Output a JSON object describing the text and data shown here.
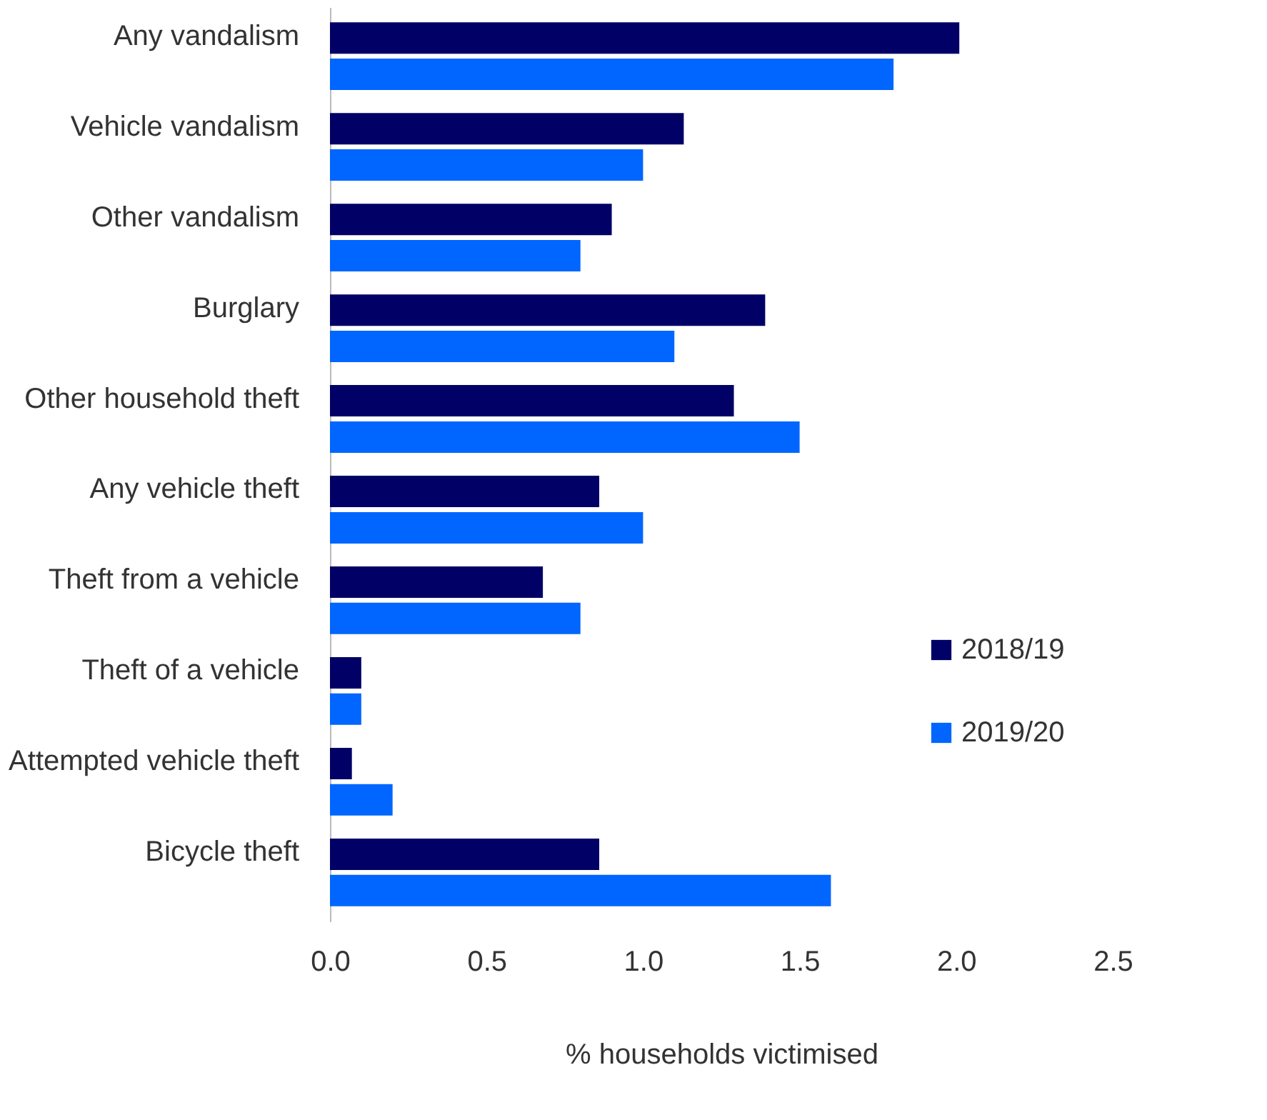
{
  "chart_data": {
    "type": "bar",
    "orientation": "horizontal",
    "xlabel": "% households victimised",
    "categories": [
      "Any vandalism",
      "Vehicle vandalism",
      "Other vandalism",
      "Burglary",
      "Other household theft",
      "Any vehicle theft",
      "Theft from a vehicle",
      "Theft of a vehicle",
      "Attempted vehicle theft",
      "Bicycle theft"
    ],
    "series": [
      {
        "name": "2018/19",
        "color": "#000066",
        "values": [
          2.01,
          1.13,
          0.9,
          1.39,
          1.29,
          0.86,
          0.68,
          0.1,
          0.07,
          0.86
        ]
      },
      {
        "name": "2019/20",
        "color": "#0066ff",
        "values": [
          1.8,
          1.0,
          0.8,
          1.1,
          1.5,
          1.0,
          0.8,
          0.1,
          0.2,
          1.6
        ]
      }
    ],
    "xlim": [
      0,
      2.5
    ],
    "xticks": [
      {
        "value": 0,
        "label": "0.0"
      },
      0.5,
      {
        "value": 1,
        "label": "1.0"
      },
      1.5,
      {
        "value": 2,
        "label": "2.0"
      },
      2.5
    ],
    "grid": false,
    "legend": "right"
  }
}
